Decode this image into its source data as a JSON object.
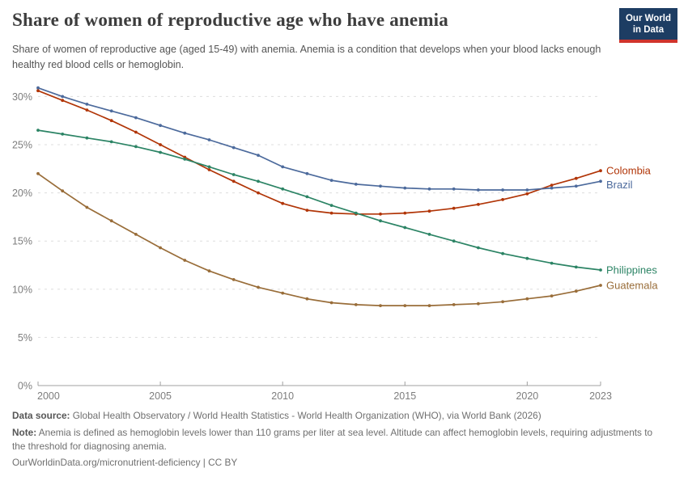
{
  "header": {
    "title": "Share of women of reproductive age who have anemia",
    "subtitle": "Share of women of reproductive age (aged 15-49) with anemia. Anemia is a condition that develops when your blood lacks enough healthy red blood cells or hemoglobin.",
    "logo": {
      "line1": "Our World",
      "line2": "in Data",
      "bg_color": "#1d3d63",
      "stripe_color": "#d0342c"
    }
  },
  "chart_data": {
    "type": "line",
    "title": "Share of women of reproductive age who have anemia",
    "xlabel": "",
    "ylabel": "",
    "y_tick_suffix": "%",
    "grid": "horizontal-dashed",
    "legend_position": "right-end-labels",
    "xlim": [
      2000,
      2023
    ],
    "ylim": [
      0,
      31.5
    ],
    "x_ticks": [
      2000,
      2005,
      2010,
      2015,
      2020,
      2023
    ],
    "y_ticks": [
      0,
      5,
      10,
      15,
      20,
      25,
      30
    ],
    "x": [
      2000,
      2001,
      2002,
      2003,
      2004,
      2005,
      2006,
      2007,
      2008,
      2009,
      2010,
      2011,
      2012,
      2013,
      2014,
      2015,
      2016,
      2017,
      2018,
      2019,
      2020,
      2021,
      2022,
      2023
    ],
    "series": [
      {
        "name": "Colombia",
        "color": "#b13507",
        "label_dy": 0,
        "values": [
          30.6,
          29.6,
          28.6,
          27.5,
          26.3,
          25.0,
          23.7,
          22.4,
          21.2,
          20.0,
          18.9,
          18.2,
          17.9,
          17.8,
          17.8,
          17.9,
          18.1,
          18.4,
          18.8,
          19.3,
          19.9,
          20.8,
          21.5,
          22.3
        ]
      },
      {
        "name": "Brazil",
        "color": "#4c6a9c",
        "label_dy": 4,
        "values": [
          30.9,
          30.0,
          29.2,
          28.5,
          27.8,
          27.0,
          26.2,
          25.5,
          24.7,
          23.9,
          22.7,
          22.0,
          21.3,
          20.9,
          20.7,
          20.5,
          20.4,
          20.4,
          20.3,
          20.3,
          20.3,
          20.5,
          20.7,
          21.2
        ]
      },
      {
        "name": "Philippines",
        "color": "#2c8465",
        "label_dy": 0,
        "values": [
          26.5,
          26.1,
          25.7,
          25.3,
          24.8,
          24.2,
          23.5,
          22.7,
          21.9,
          21.2,
          20.4,
          19.6,
          18.7,
          17.9,
          17.1,
          16.4,
          15.7,
          15.0,
          14.3,
          13.7,
          13.2,
          12.7,
          12.3,
          12.0
        ]
      },
      {
        "name": "Guatemala",
        "color": "#996d39",
        "label_dy": 0,
        "values": [
          22.0,
          20.2,
          18.5,
          17.1,
          15.7,
          14.3,
          13.0,
          11.9,
          11.0,
          10.2,
          9.6,
          9.0,
          8.6,
          8.4,
          8.3,
          8.3,
          8.3,
          8.4,
          8.5,
          8.7,
          9.0,
          9.3,
          9.8,
          10.4
        ]
      }
    ]
  },
  "footer": {
    "data_source_label": "Data source:",
    "data_source": " Global Health Observatory / World Health Statistics - World Health Organization (WHO), via World Bank (2026)",
    "note_label": "Note:",
    "note": " Anemia is defined as hemoglobin levels lower than 110 grams per liter at sea level. Altitude can affect hemoglobin levels, requiring adjustments to the threshold for diagnosing anemia.",
    "link": "OurWorldinData.org/micronutrient-deficiency | CC BY"
  }
}
